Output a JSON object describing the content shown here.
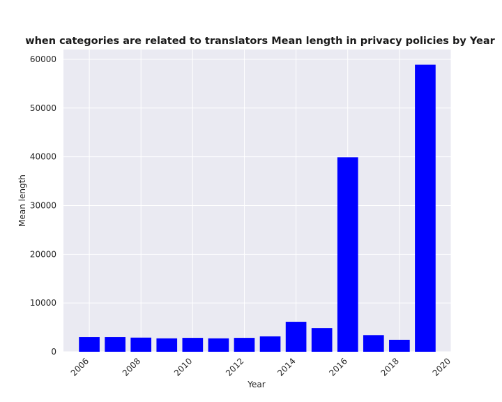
{
  "chart_data": {
    "type": "bar",
    "title": "when categories are related to translators Mean length in privacy policies by Year",
    "xlabel": "Year",
    "ylabel": "Mean length",
    "x": [
      2006,
      2007,
      2008,
      2009,
      2010,
      2011,
      2012,
      2013,
      2014,
      2015,
      2016,
      2017,
      2018,
      2019
    ],
    "values": [
      3000,
      3000,
      2900,
      2750,
      2850,
      2750,
      2850,
      3150,
      6150,
      4850,
      39900,
      3400,
      2450,
      58900
    ],
    "xlim": [
      2005.0,
      2020.0
    ],
    "ylim": [
      0,
      62000
    ],
    "x_ticks": [
      "2006",
      "2008",
      "2010",
      "2012",
      "2014",
      "2016",
      "2018",
      "2020"
    ],
    "y_ticks": [
      "0",
      "10000",
      "20000",
      "30000",
      "40000",
      "50000",
      "60000"
    ],
    "bar_color": "#0000ff",
    "background_color": "#eaeaf2",
    "grid": true
  }
}
